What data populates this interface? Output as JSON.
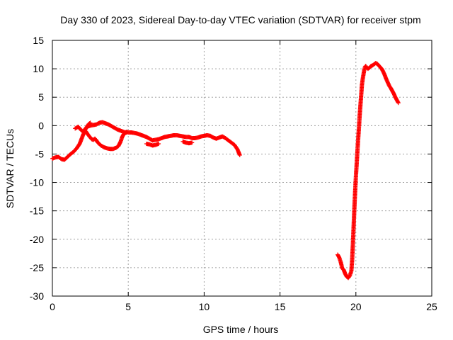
{
  "chart_data": {
    "type": "scatter",
    "title": "Day 330 of 2023, Sidereal Day-to-day VTEC variation (SDTVAR) for receiver stpm",
    "xlabel": "GPS time / hours",
    "ylabel": "SDTVAR / TECUs",
    "xlim": [
      0,
      25
    ],
    "ylim": [
      -30,
      15
    ],
    "x_ticks": [
      0,
      5,
      10,
      15,
      20,
      25
    ],
    "y_ticks": [
      -30,
      -25,
      -20,
      -15,
      -10,
      -5,
      0,
      5,
      10,
      15
    ],
    "grid": true,
    "marker": "plus",
    "series": [
      {
        "name": "SDTVAR",
        "color": "#ff0000",
        "segments": [
          {
            "x": [
              0.0,
              0.2,
              0.4,
              0.6,
              0.8,
              1.0,
              1.2,
              1.4,
              1.6,
              1.8,
              2.0,
              2.2,
              2.4,
              2.5
            ],
            "y": [
              -5.8,
              -5.6,
              -5.5,
              -5.9,
              -6.0,
              -5.5,
              -5.0,
              -4.6,
              -4.0,
              -3.2,
              -1.8,
              -0.5,
              0.3,
              0.5
            ]
          },
          {
            "x": [
              1.5,
              1.7,
              1.9,
              2.0,
              2.1,
              2.3,
              2.5,
              2.7,
              2.9,
              3.1,
              3.3,
              3.5,
              3.7,
              3.9,
              4.1,
              4.3,
              4.5,
              4.6,
              4.7,
              4.8,
              4.9,
              5.0,
              5.2,
              5.4,
              5.6,
              5.8,
              6.0,
              6.2,
              6.4,
              6.6,
              6.8,
              7.0,
              7.2,
              7.4,
              7.6,
              7.8,
              8.0,
              8.2,
              8.4,
              8.6,
              8.8,
              9.0,
              9.2,
              9.4,
              9.6,
              9.8,
              10.0,
              10.2,
              10.4,
              10.6,
              10.8,
              11.0,
              11.2,
              11.4,
              11.6,
              11.8,
              12.0,
              12.2,
              12.35
            ],
            "y": [
              -0.5,
              -0.2,
              -0.8,
              -1.0,
              -0.8,
              -0.2,
              0.0,
              0.1,
              0.2,
              0.5,
              0.6,
              0.4,
              0.2,
              -0.1,
              -0.4,
              -0.7,
              -0.9,
              -1.0,
              -1.1,
              -1.2,
              -1.1,
              -1.2,
              -1.2,
              -1.3,
              -1.4,
              -1.6,
              -1.8,
              -2.0,
              -2.3,
              -2.6,
              -2.5,
              -2.4,
              -2.2,
              -2.0,
              -1.9,
              -1.8,
              -1.7,
              -1.7,
              -1.8,
              -1.9,
              -2.0,
              -2.0,
              -2.2,
              -2.2,
              -2.1,
              -1.9,
              -1.8,
              -1.7,
              -1.8,
              -2.1,
              -2.3,
              -2.1,
              -1.9,
              -2.2,
              -2.6,
              -3.0,
              -3.4,
              -4.2,
              -5.2
            ]
          },
          {
            "x": [
              2.2,
              2.35,
              2.5,
              2.6,
              2.7,
              2.8,
              2.9,
              3.0,
              3.2,
              3.4,
              3.6,
              3.8,
              4.0,
              4.2,
              4.35,
              4.5,
              4.6,
              4.7,
              4.8,
              4.9
            ],
            "y": [
              -1.0,
              -1.6,
              -2.1,
              -2.4,
              -2.5,
              -2.3,
              -2.6,
              -3.0,
              -3.5,
              -3.8,
              -4.0,
              -4.1,
              -4.1,
              -3.9,
              -3.6,
              -2.8,
              -2.0,
              -1.5,
              -1.3,
              -1.2
            ]
          },
          {
            "x": [
              6.2,
              6.4,
              6.6,
              6.8,
              7.0
            ],
            "y": [
              -3.2,
              -3.3,
              -3.5,
              -3.4,
              -3.2
            ]
          },
          {
            "x": [
              8.6,
              8.8,
              9.0,
              9.2
            ],
            "y": [
              -2.8,
              -3.0,
              -3.1,
              -3.0
            ]
          },
          {
            "x": [
              18.8,
              18.9,
              19.0,
              19.1,
              19.2,
              19.3,
              19.4,
              19.5,
              19.6,
              19.7,
              19.75,
              19.8,
              19.85,
              19.9,
              19.95,
              20.0,
              20.05,
              20.1,
              20.15,
              20.2,
              20.25,
              20.3,
              20.35,
              20.4,
              20.45,
              20.5,
              20.55,
              20.6,
              20.65,
              20.7,
              20.8,
              20.9,
              21.0,
              21.1,
              21.2,
              21.3,
              21.4,
              21.5,
              21.6,
              21.7,
              21.8,
              21.9,
              22.0,
              22.1,
              22.2,
              22.3,
              22.4,
              22.5,
              22.6,
              22.7,
              22.8
            ],
            "y": [
              -22.7,
              -23.2,
              -24.0,
              -25.1,
              -25.4,
              -26.1,
              -26.6,
              -26.8,
              -26.4,
              -25.6,
              -23.8,
              -21.0,
              -17.8,
              -14.6,
              -11.6,
              -9.0,
              -6.8,
              -4.6,
              -2.4,
              -0.4,
              1.8,
              3.6,
              5.4,
              7.2,
              8.2,
              9.0,
              9.8,
              10.3,
              10.5,
              10.2,
              10.0,
              10.2,
              10.5,
              10.6,
              10.8,
              11.0,
              10.9,
              10.6,
              10.3,
              10.0,
              9.5,
              8.9,
              8.2,
              7.6,
              7.0,
              6.6,
              6.1,
              5.6,
              5.0,
              4.5,
              4.0
            ]
          }
        ]
      }
    ]
  }
}
